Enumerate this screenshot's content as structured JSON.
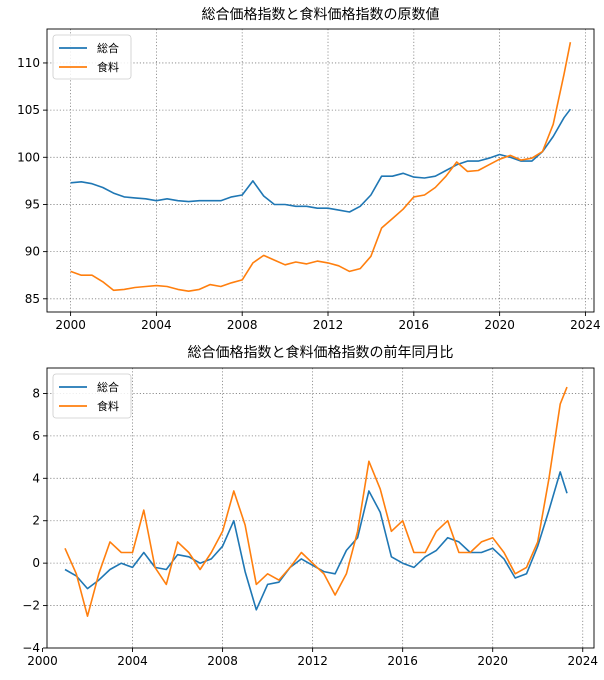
{
  "chart_data": [
    {
      "type": "line",
      "title": "総合価格指数と食料価格指数の原数値",
      "xlabel": "",
      "ylabel": "",
      "xlim": [
        1998.9,
        2024.4
      ],
      "ylim": [
        83.6,
        113.6
      ],
      "xticks": [
        2000,
        2004,
        2008,
        2012,
        2016,
        2020,
        2024
      ],
      "xtick_labels": [
        "2000",
        "2004",
        "2008",
        "2012",
        "2016",
        "2020",
        "2024"
      ],
      "yticks": [
        85,
        90,
        95,
        100,
        105,
        110
      ],
      "ytick_labels": [
        "85",
        "90",
        "95",
        "100",
        "105",
        "110"
      ],
      "grid": true,
      "legend_position": "top-left",
      "series": [
        {
          "name": "総合",
          "color": "#1f77b4",
          "points": [
            [
              2000.0,
              97.3
            ],
            [
              2000.5,
              97.4
            ],
            [
              2001.0,
              97.2
            ],
            [
              2001.5,
              96.8
            ],
            [
              2002.0,
              96.2
            ],
            [
              2002.5,
              95.8
            ],
            [
              2003.0,
              95.7
            ],
            [
              2003.5,
              95.6
            ],
            [
              2004.0,
              95.4
            ],
            [
              2004.5,
              95.6
            ],
            [
              2005.0,
              95.4
            ],
            [
              2005.5,
              95.3
            ],
            [
              2006.0,
              95.4
            ],
            [
              2006.5,
              95.4
            ],
            [
              2007.0,
              95.4
            ],
            [
              2007.5,
              95.8
            ],
            [
              2008.0,
              96.0
            ],
            [
              2008.5,
              97.5
            ],
            [
              2009.0,
              95.9
            ],
            [
              2009.5,
              95.0
            ],
            [
              2010.0,
              95.0
            ],
            [
              2010.5,
              94.8
            ],
            [
              2011.0,
              94.8
            ],
            [
              2011.5,
              94.6
            ],
            [
              2012.0,
              94.6
            ],
            [
              2012.5,
              94.4
            ],
            [
              2013.0,
              94.2
            ],
            [
              2013.5,
              94.8
            ],
            [
              2014.0,
              96.0
            ],
            [
              2014.5,
              98.0
            ],
            [
              2015.0,
              98.0
            ],
            [
              2015.5,
              98.3
            ],
            [
              2016.0,
              97.9
            ],
            [
              2016.5,
              97.8
            ],
            [
              2017.0,
              98.0
            ],
            [
              2017.5,
              98.6
            ],
            [
              2018.0,
              99.2
            ],
            [
              2018.5,
              99.6
            ],
            [
              2019.0,
              99.6
            ],
            [
              2019.5,
              99.9
            ],
            [
              2020.0,
              100.3
            ],
            [
              2020.5,
              100.0
            ],
            [
              2021.0,
              99.6
            ],
            [
              2021.5,
              99.6
            ],
            [
              2022.0,
              100.6
            ],
            [
              2022.5,
              102.2
            ],
            [
              2023.0,
              104.2
            ],
            [
              2023.3,
              105.1
            ]
          ]
        },
        {
          "name": "食料",
          "color": "#ff7f0e",
          "points": [
            [
              2000.0,
              87.9
            ],
            [
              2000.5,
              87.5
            ],
            [
              2001.0,
              87.5
            ],
            [
              2001.5,
              86.8
            ],
            [
              2002.0,
              85.9
            ],
            [
              2002.5,
              86.0
            ],
            [
              2003.0,
              86.2
            ],
            [
              2003.5,
              86.3
            ],
            [
              2004.0,
              86.4
            ],
            [
              2004.5,
              86.3
            ],
            [
              2005.0,
              86.0
            ],
            [
              2005.5,
              85.8
            ],
            [
              2006.0,
              86.0
            ],
            [
              2006.5,
              86.5
            ],
            [
              2007.0,
              86.3
            ],
            [
              2007.5,
              86.7
            ],
            [
              2008.0,
              87.0
            ],
            [
              2008.5,
              88.8
            ],
            [
              2009.0,
              89.6
            ],
            [
              2009.5,
              89.1
            ],
            [
              2010.0,
              88.6
            ],
            [
              2010.5,
              88.9
            ],
            [
              2011.0,
              88.7
            ],
            [
              2011.5,
              89.0
            ],
            [
              2012.0,
              88.8
            ],
            [
              2012.5,
              88.5
            ],
            [
              2013.0,
              87.9
            ],
            [
              2013.5,
              88.2
            ],
            [
              2014.0,
              89.5
            ],
            [
              2014.5,
              92.5
            ],
            [
              2015.0,
              93.5
            ],
            [
              2015.5,
              94.5
            ],
            [
              2016.0,
              95.8
            ],
            [
              2016.5,
              96.0
            ],
            [
              2017.0,
              96.8
            ],
            [
              2017.5,
              98.0
            ],
            [
              2018.0,
              99.5
            ],
            [
              2018.5,
              98.5
            ],
            [
              2019.0,
              98.6
            ],
            [
              2019.5,
              99.2
            ],
            [
              2020.0,
              99.8
            ],
            [
              2020.5,
              100.2
            ],
            [
              2021.0,
              99.7
            ],
            [
              2021.5,
              99.9
            ],
            [
              2022.0,
              100.6
            ],
            [
              2022.5,
              103.5
            ],
            [
              2023.0,
              108.8
            ],
            [
              2023.3,
              112.2
            ]
          ]
        }
      ]
    },
    {
      "type": "line",
      "title": "総合価格指数と食料価格指数の前年同月比",
      "xlabel": "",
      "ylabel": "",
      "xlim": [
        2000.2,
        2024.5
      ],
      "ylim": [
        -4.0,
        9.2
      ],
      "xticks": [
        2000,
        2004,
        2008,
        2012,
        2016,
        2020,
        2024
      ],
      "xtick_labels": [
        "2000",
        "2004",
        "2008",
        "2012",
        "2016",
        "2020",
        "2024"
      ],
      "yticks": [
        -4,
        -2,
        0,
        2,
        4,
        6,
        8
      ],
      "ytick_labels": [
        "−4",
        "−2",
        "0",
        "2",
        "4",
        "6",
        "8"
      ],
      "grid": true,
      "legend_position": "top-left",
      "series": [
        {
          "name": "総合",
          "color": "#1f77b4",
          "points": [
            [
              2001.0,
              -0.3
            ],
            [
              2001.5,
              -0.6
            ],
            [
              2002.0,
              -1.2
            ],
            [
              2002.5,
              -0.8
            ],
            [
              2003.0,
              -0.3
            ],
            [
              2003.5,
              0.0
            ],
            [
              2004.0,
              -0.2
            ],
            [
              2004.5,
              0.5
            ],
            [
              2005.0,
              -0.2
            ],
            [
              2005.5,
              -0.3
            ],
            [
              2006.0,
              0.4
            ],
            [
              2006.5,
              0.3
            ],
            [
              2007.0,
              0.0
            ],
            [
              2007.5,
              0.2
            ],
            [
              2008.0,
              0.8
            ],
            [
              2008.5,
              2.0
            ],
            [
              2009.0,
              -0.4
            ],
            [
              2009.5,
              -2.2
            ],
            [
              2010.0,
              -1.0
            ],
            [
              2010.5,
              -0.9
            ],
            [
              2011.0,
              -0.2
            ],
            [
              2011.5,
              0.2
            ],
            [
              2012.0,
              -0.1
            ],
            [
              2012.5,
              -0.4
            ],
            [
              2013.0,
              -0.5
            ],
            [
              2013.5,
              0.6
            ],
            [
              2014.0,
              1.2
            ],
            [
              2014.5,
              3.4
            ],
            [
              2015.0,
              2.4
            ],
            [
              2015.5,
              0.3
            ],
            [
              2016.0,
              0.0
            ],
            [
              2016.5,
              -0.2
            ],
            [
              2017.0,
              0.3
            ],
            [
              2017.5,
              0.6
            ],
            [
              2018.0,
              1.2
            ],
            [
              2018.5,
              1.0
            ],
            [
              2019.0,
              0.5
            ],
            [
              2019.5,
              0.5
            ],
            [
              2020.0,
              0.7
            ],
            [
              2020.5,
              0.2
            ],
            [
              2021.0,
              -0.7
            ],
            [
              2021.5,
              -0.5
            ],
            [
              2022.0,
              0.8
            ],
            [
              2022.5,
              2.5
            ],
            [
              2023.0,
              4.3
            ],
            [
              2023.3,
              3.3
            ]
          ]
        },
        {
          "name": "食料",
          "color": "#ff7f0e",
          "points": [
            [
              2001.0,
              0.7
            ],
            [
              2001.5,
              -0.5
            ],
            [
              2002.0,
              -2.5
            ],
            [
              2002.5,
              -0.5
            ],
            [
              2003.0,
              1.0
            ],
            [
              2003.5,
              0.5
            ],
            [
              2004.0,
              0.5
            ],
            [
              2004.5,
              2.5
            ],
            [
              2005.0,
              -0.2
            ],
            [
              2005.5,
              -1.0
            ],
            [
              2006.0,
              1.0
            ],
            [
              2006.5,
              0.5
            ],
            [
              2007.0,
              -0.3
            ],
            [
              2007.5,
              0.5
            ],
            [
              2008.0,
              1.5
            ],
            [
              2008.5,
              3.4
            ],
            [
              2009.0,
              1.8
            ],
            [
              2009.5,
              -1.0
            ],
            [
              2010.0,
              -0.5
            ],
            [
              2010.5,
              -0.8
            ],
            [
              2011.0,
              -0.2
            ],
            [
              2011.5,
              0.5
            ],
            [
              2012.0,
              0.0
            ],
            [
              2012.5,
              -0.5
            ],
            [
              2013.0,
              -1.5
            ],
            [
              2013.5,
              -0.5
            ],
            [
              2014.0,
              1.5
            ],
            [
              2014.5,
              4.8
            ],
            [
              2015.0,
              3.5
            ],
            [
              2015.5,
              1.5
            ],
            [
              2016.0,
              2.0
            ],
            [
              2016.5,
              0.5
            ],
            [
              2017.0,
              0.5
            ],
            [
              2017.5,
              1.5
            ],
            [
              2018.0,
              2.0
            ],
            [
              2018.5,
              0.5
            ],
            [
              2019.0,
              0.5
            ],
            [
              2019.5,
              1.0
            ],
            [
              2020.0,
              1.2
            ],
            [
              2020.5,
              0.5
            ],
            [
              2021.0,
              -0.5
            ],
            [
              2021.5,
              -0.2
            ],
            [
              2022.0,
              1.0
            ],
            [
              2022.5,
              4.0
            ],
            [
              2023.0,
              7.5
            ],
            [
              2023.3,
              8.3
            ]
          ]
        }
      ]
    }
  ]
}
